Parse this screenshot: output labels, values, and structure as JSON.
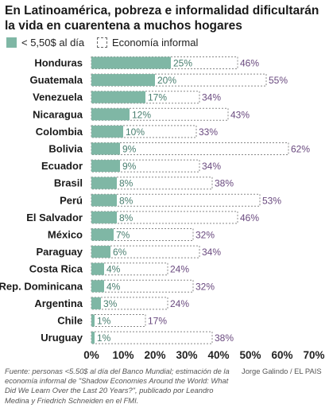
{
  "title": "En Latinoamérica, pobreza e informalidad dificultarán la vida en cuarentena a muchos hogares",
  "legend": [
    {
      "label": "< 5,50$ al día",
      "style": "solid"
    },
    {
      "label": "Economía informal",
      "style": "dotted"
    }
  ],
  "colors": {
    "poverty_fill": "#7fb7a5",
    "poverty_label": "#4a7f70",
    "informal_label": "#6a4a7f",
    "axis_text": "#222222"
  },
  "chart_data": {
    "type": "bar",
    "orientation": "horizontal",
    "categories": [
      "Honduras",
      "Guatemala",
      "Venezuela",
      "Nicaragua",
      "Colombia",
      "Bolivia",
      "Ecuador",
      "Brasil",
      "Perú",
      "El Salvador",
      "México",
      "Paraguay",
      "Costa Rica",
      "Rep. Dominicana",
      "Argentina",
      "Chile",
      "Uruguay"
    ],
    "series": [
      {
        "name": "< 5,50$ al día",
        "values": [
          25,
          20,
          17,
          12,
          10,
          9,
          9,
          8,
          8,
          8,
          7,
          6,
          4,
          4,
          3,
          1,
          1
        ]
      },
      {
        "name": "Economía informal",
        "values": [
          46,
          55,
          34,
          43,
          33,
          62,
          34,
          38,
          53,
          46,
          32,
          34,
          24,
          32,
          24,
          17,
          38
        ]
      }
    ],
    "value_suffix": "%",
    "xlim": [
      0,
      70
    ],
    "xticks": [
      "0%",
      "10%",
      "20%",
      "30%",
      "40%",
      "50%",
      "60%",
      "70%"
    ],
    "grid": false,
    "legend_position": "top-left"
  },
  "footer": {
    "source": "Fuente: personas <5.50$ al día del Banco Mundial; estimación de la economía informal de \"Shadow Economies Around the World: What Did We Learn Over the Last 20 Years?\", publicado por Leandro Medina y Friedrich Schneiden en el FMI.",
    "credit": "Jorge Galindo / EL PAIS"
  }
}
